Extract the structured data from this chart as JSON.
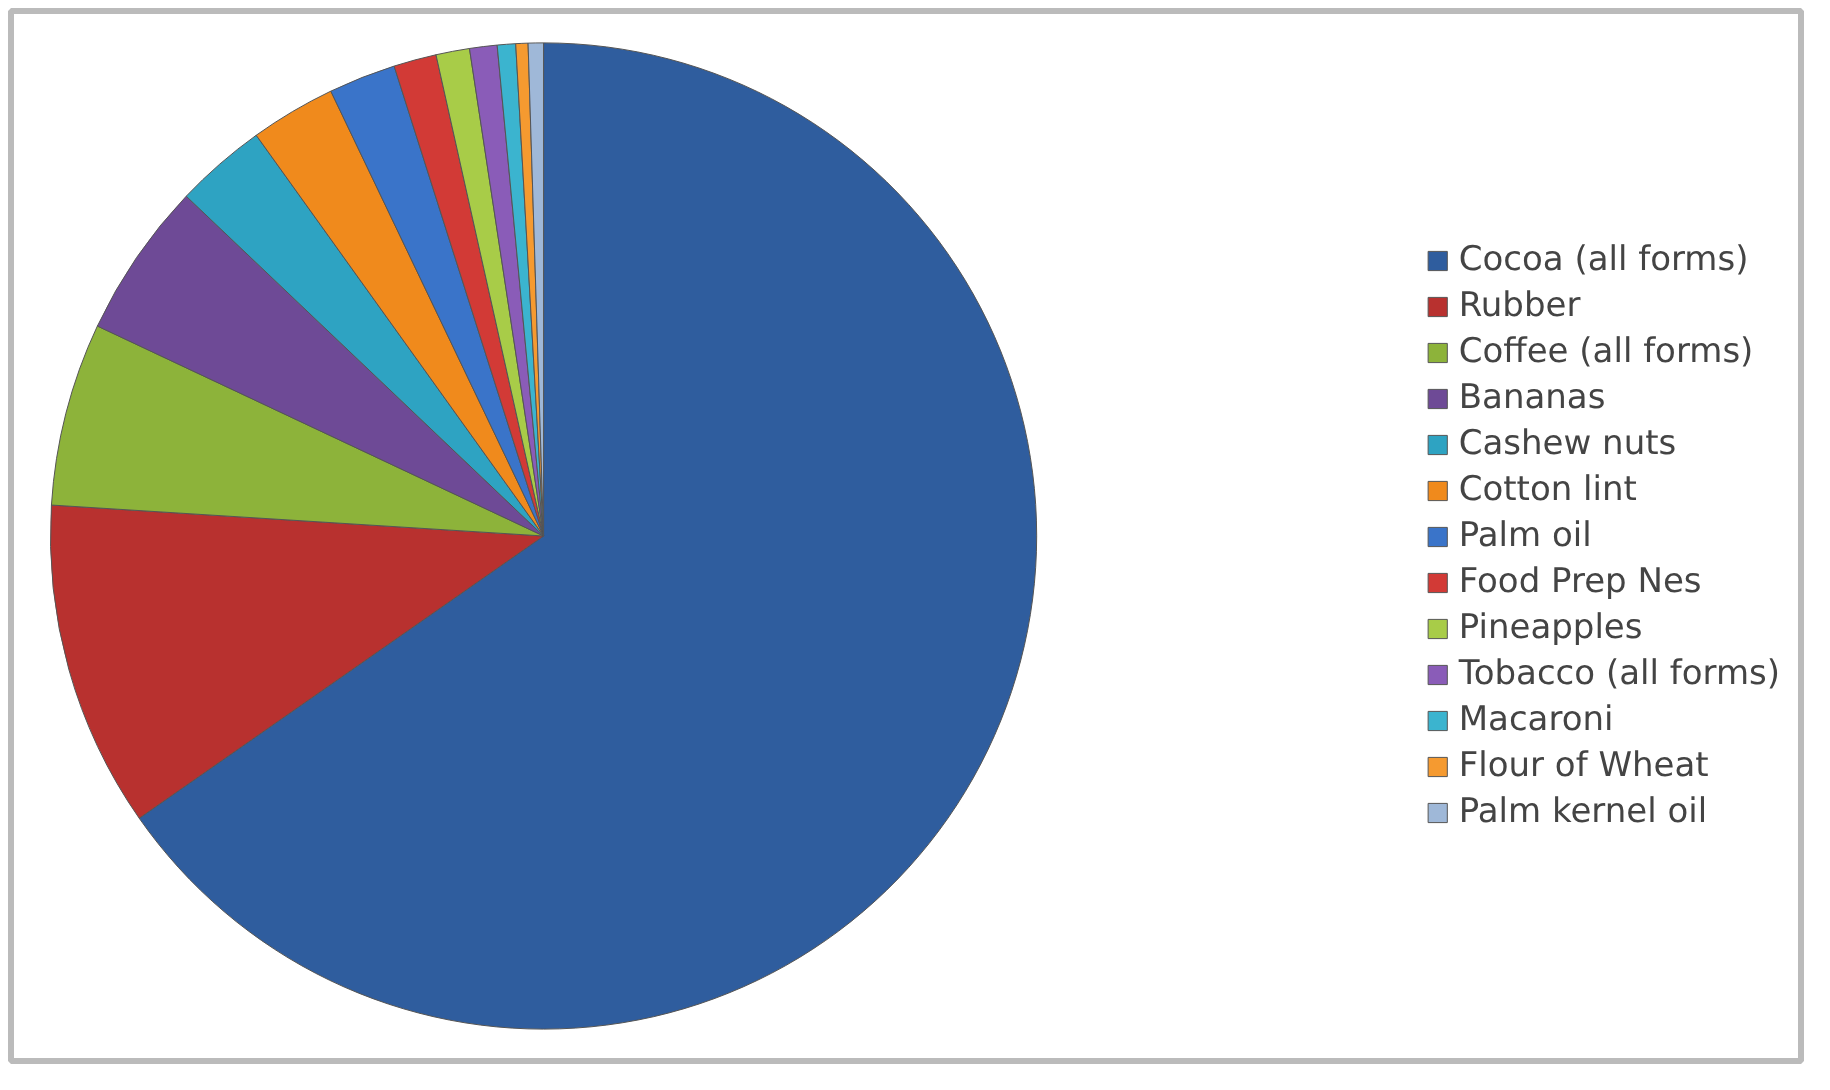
{
  "chart_data": {
    "type": "pie",
    "categories": [
      "Cocoa (all forms)",
      "Rubber",
      "Coffee (all forms)",
      "Bananas",
      "Cashew nuts",
      "Cotton lint",
      "Palm oil",
      "Food Prep Nes",
      "Pineapples",
      "Tobacco (all forms)",
      "Macaroni",
      "Flour of Wheat",
      "Palm kernel oil"
    ],
    "values": [
      65.3,
      10.7,
      6.0,
      5.1,
      3.0,
      2.8,
      2.2,
      1.4,
      1.1,
      0.9,
      0.6,
      0.4,
      0.5
    ],
    "colors": [
      "#2f5d9e",
      "#b8312f",
      "#8db33a",
      "#6e4a96",
      "#2ea3c2",
      "#f08a1c",
      "#3a74c9",
      "#d23a36",
      "#a8cc48",
      "#8a5cb8",
      "#3bb4cf",
      "#f59a30",
      "#9fb8d8"
    ],
    "legend": "right"
  }
}
